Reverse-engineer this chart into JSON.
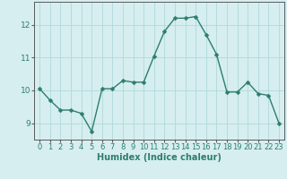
{
  "x": [
    0,
    1,
    2,
    3,
    4,
    5,
    6,
    7,
    8,
    9,
    10,
    11,
    12,
    13,
    14,
    15,
    16,
    17,
    18,
    19,
    20,
    21,
    22,
    23
  ],
  "y": [
    10.05,
    9.7,
    9.4,
    9.4,
    9.3,
    8.75,
    10.05,
    10.05,
    10.3,
    10.25,
    10.25,
    11.05,
    11.8,
    12.2,
    12.2,
    12.25,
    11.7,
    11.1,
    9.95,
    9.95,
    10.25,
    9.9,
    9.85,
    9.0
  ],
  "xlabel": "Humidex (Indice chaleur)",
  "ylim": [
    8.5,
    12.7
  ],
  "xlim": [
    -0.5,
    23.5
  ],
  "yticks": [
    9,
    10,
    11,
    12
  ],
  "xticks": [
    0,
    1,
    2,
    3,
    4,
    5,
    6,
    7,
    8,
    9,
    10,
    11,
    12,
    13,
    14,
    15,
    16,
    17,
    18,
    19,
    20,
    21,
    22,
    23
  ],
  "line_color": "#2e7d6e",
  "marker_color": "#2e7d6e",
  "bg_color": "#d6eef0",
  "grid_color": "#b0d8dc",
  "axis_color": "#5a5a5a",
  "label_color": "#2e7d6e",
  "xlabel_fontsize": 7,
  "tick_fontsize": 6,
  "linewidth": 1.0,
  "markersize": 2.5
}
